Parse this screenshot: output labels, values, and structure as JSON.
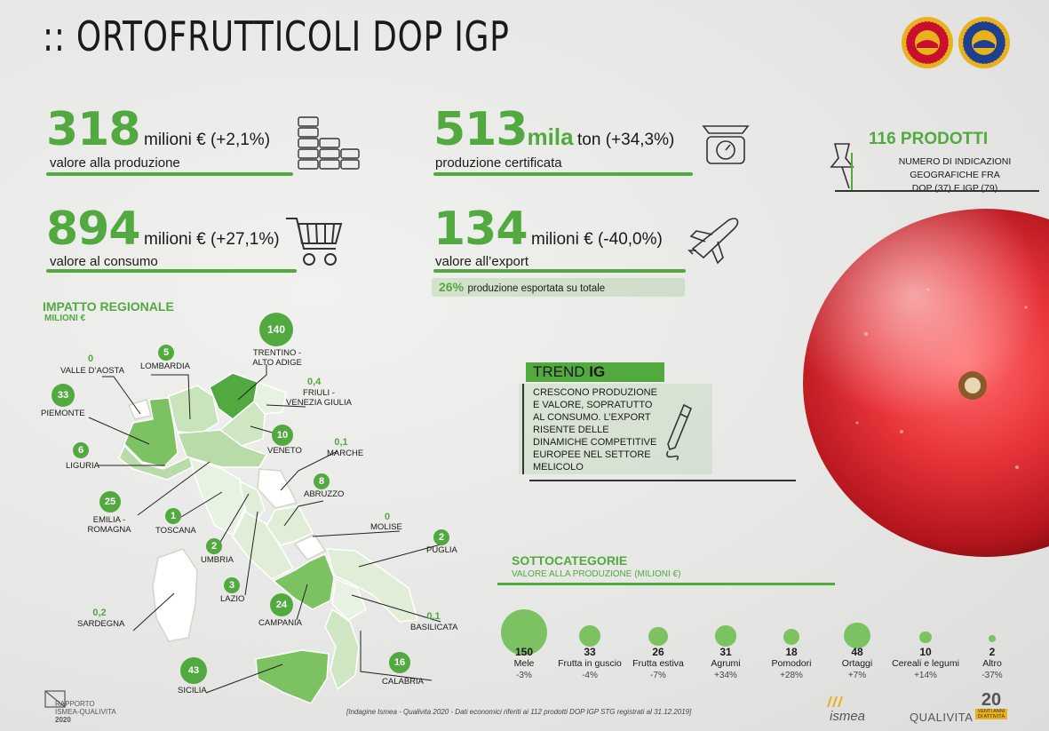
{
  "header": {
    "title": ":: ORTOFRUTTICOLI DOP IGP"
  },
  "kpis": {
    "value_production": {
      "number": "318",
      "unit": "milioni € (+2,1%)",
      "label": "valore alla produzione"
    },
    "value_consumption": {
      "number": "894",
      "unit": "milioni € (+27,1%)",
      "label": "valore al consumo"
    },
    "certified": {
      "number": "513",
      "unit_strong": "mila",
      "unit": "ton (+34,3%)",
      "label": "produzione certificata"
    },
    "export": {
      "number": "134",
      "unit": "milioni € (-40,0%)",
      "label": "valore all’export"
    },
    "export_share": {
      "pct": "26%",
      "text": "produzione esportata su totale"
    }
  },
  "products": {
    "title": "116 PRODOTTI",
    "line1": "NUMERO DI INDICAZIONI",
    "line2": "GEOGRAFICHE FRA",
    "line3": "DOP (37) E IGP (79)"
  },
  "trend": {
    "title_a": "TREND ",
    "title_b": "IG",
    "lines": [
      "CRESCONO PRODUZIONE",
      "E VALORE, SOPRATUTTO",
      "AL CONSUMO. L’EXPORT",
      "RISENTE DELLE",
      "DINAMICHE COMPETITIVE",
      "EUROPEE NEL SETTORE",
      "MELICOLO"
    ]
  },
  "regional": {
    "title": "IMPATTO REGIONALE",
    "subtitle": "MILIONI €",
    "regions": [
      {
        "name": "VALLE D’AOSTA",
        "value": "0"
      },
      {
        "name": "LOMBARDIA",
        "value": "5"
      },
      {
        "name": "TRENTINO - ALTO ADIGE",
        "value": "140"
      },
      {
        "name": "FRIULI - VENEZIA GIULIA",
        "value": "0,4"
      },
      {
        "name": "PIEMONTE",
        "value": "33"
      },
      {
        "name": "VENETO",
        "value": "10"
      },
      {
        "name": "LIGURIA",
        "value": "6"
      },
      {
        "name": "MARCHE",
        "value": "0,1"
      },
      {
        "name": "ABRUZZO",
        "value": "8"
      },
      {
        "name": "EMILIA - ROMAGNA",
        "value": "25"
      },
      {
        "name": "TOSCANA",
        "value": "1"
      },
      {
        "name": "MOLISE",
        "value": "0"
      },
      {
        "name": "UMBRIA",
        "value": "2"
      },
      {
        "name": "PUGLIA",
        "value": "2"
      },
      {
        "name": "LAZIO",
        "value": "3"
      },
      {
        "name": "CAMPANIA",
        "value": "24"
      },
      {
        "name": "SARDEGNA",
        "value": "0,2"
      },
      {
        "name": "BASILICATA",
        "value": "0,1"
      },
      {
        "name": "CALABRIA",
        "value": "16"
      },
      {
        "name": "SICILIA",
        "value": "43"
      }
    ]
  },
  "subcategories": {
    "title": "SOTTOCATEGORIE",
    "subtitle": "VALORE ALLA PRODUZIONE (MILIONI €)",
    "items": [
      {
        "name": "Mele",
        "value": 150,
        "change": "-3%"
      },
      {
        "name": "Frutta in guscio",
        "value": 33,
        "change": "-4%"
      },
      {
        "name": "Frutta estiva",
        "value": 26,
        "change": "-7%"
      },
      {
        "name": "Agrumi",
        "value": 31,
        "change": "+34%"
      },
      {
        "name": "Pomodori",
        "value": 18,
        "change": "+28%"
      },
      {
        "name": "Ortaggi",
        "value": 48,
        "change": "+7%"
      },
      {
        "name": "Cereali e legumi",
        "value": 10,
        "change": "+14%"
      },
      {
        "name": "Altro",
        "value": 2,
        "change": "-37%"
      }
    ]
  },
  "footer": {
    "report_line1": "RAPPORTO",
    "report_line2": "ISMEA-QUALIVITA",
    "report_year": "2020",
    "source": "[Indagine Ismea - Qualivita 2020 - Dati economici riferiti ai 112 prodotti DOP IGP STG registrati al 31.12.2019]",
    "logo_ismea": "ismea",
    "logo_qualivita": "QUALIVITA",
    "logo_anni_num": "20",
    "logo_anni_text": "VENTI ANNI DI ATTIVITÀ"
  },
  "colors": {
    "accent": "#52a93f",
    "bubble": "#7cc262",
    "dop_seal": "#c8102e",
    "igp_seal": "#1f3f8f",
    "gold": "#e8b21c"
  },
  "icons": [
    "coins-icon",
    "scale-icon",
    "cart-icon",
    "plane-icon",
    "pushpin-icon",
    "pen-icon",
    "apple-image",
    "dop-seal-icon",
    "igp-seal-icon"
  ]
}
